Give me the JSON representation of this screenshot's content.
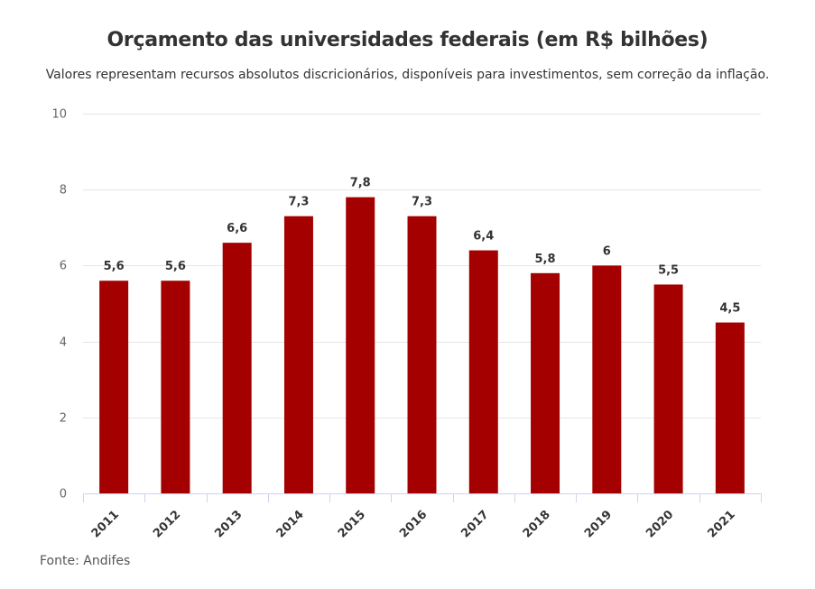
{
  "title": "Orçamento das universidades federais (em R$ bilhões)",
  "subtitle": "Valores representam recursos absolutos discricionários, disponíveis para investimentos, sem correção da inflação.",
  "source": "Fonte: Andifes",
  "colors": {
    "bar": "#a50000",
    "grid": "#e6e6e6",
    "axis": "#ccd6eb"
  },
  "chart_data": {
    "type": "bar",
    "title": "Orçamento das universidades federais (em R$ bilhões)",
    "subtitle": "Valores representam recursos absolutos discricionários, disponíveis para investimentos, sem correção da inflação.",
    "categories": [
      "2011",
      "2012",
      "2013",
      "2014",
      "2015",
      "2016",
      "2017",
      "2018",
      "2019",
      "2020",
      "2021"
    ],
    "values": [
      5.6,
      5.6,
      6.6,
      7.3,
      7.8,
      7.3,
      6.4,
      5.8,
      6,
      5.5,
      4.5
    ],
    "value_labels": [
      "5,6",
      "5,6",
      "6,6",
      "7,3",
      "7,8",
      "7,3",
      "6,4",
      "5,8",
      "6",
      "5,5",
      "4,5"
    ],
    "xlabel": "",
    "ylabel": "",
    "ylim": [
      0,
      10
    ],
    "yticks": [
      "0",
      "2",
      "4",
      "6",
      "8",
      "10"
    ],
    "grid": true,
    "legend": "none"
  }
}
